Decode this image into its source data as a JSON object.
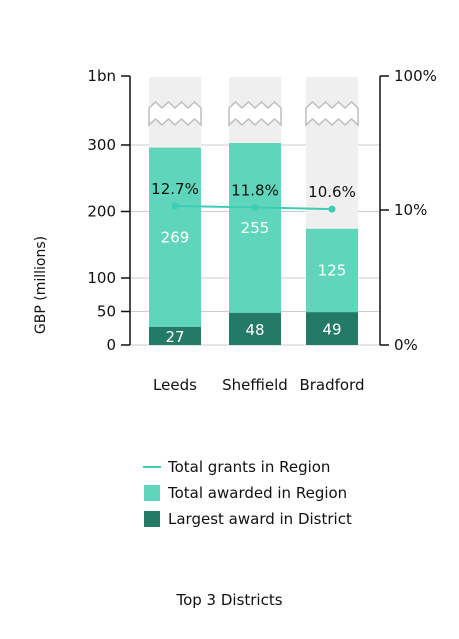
{
  "chart_data": {
    "type": "bar",
    "stacked": true,
    "categories": [
      "Leeds",
      "Sheffield",
      "Bradford"
    ],
    "series": [
      {
        "name": "Largest award in District",
        "values": [
          27,
          48,
          49
        ],
        "color": "#237a66"
      },
      {
        "name": "Total awarded in Region",
        "values": [
          269,
          255,
          125
        ],
        "color": "#5fd6bb"
      },
      {
        "name": "Total grants in Region",
        "type": "line",
        "axis": "right",
        "values": [
          12.7,
          11.8,
          10.6
        ],
        "labels": [
          "12.7%",
          "11.8%",
          "10.6%"
        ],
        "color": "#3dcdb2"
      }
    ],
    "left_axis": {
      "label": "GBP (millions)",
      "ticks": [
        "0",
        "50",
        "100",
        "200",
        "300",
        "1bn"
      ],
      "ylim": [
        0,
        1000
      ],
      "broken": true
    },
    "right_axis": {
      "ticks": [
        "0%",
        "10%",
        "100%"
      ],
      "broken": true
    },
    "grid": true,
    "legend_position": "bottom",
    "title": "Top 3 Districts"
  },
  "colors": {
    "dark_bar": "#237a66",
    "light_bar": "#5fd6bb",
    "line": "#3dcdb2",
    "background_bar": "#efefef",
    "gridline": "#cccccc"
  }
}
